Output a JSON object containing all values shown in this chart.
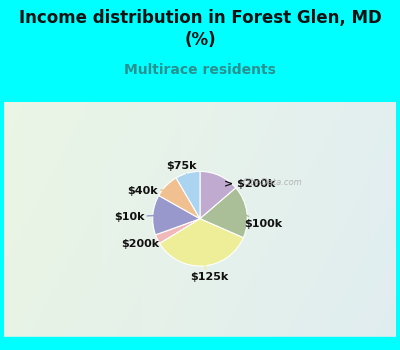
{
  "title": "Income distribution in Forest Glen, MD\n(%)",
  "subtitle": "Multirace residents",
  "title_color": "#111111",
  "subtitle_color": "#2a9090",
  "background_color": "#00ffff",
  "chart_bg_top_left": "#c8e8d8",
  "chart_bg_center": "#f0f8f4",
  "chart_bg_right": "#d8eef8",
  "labels": [
    "> $200k",
    "$100k",
    "$125k",
    "$200k",
    "$10k",
    "$40k",
    "$75k"
  ],
  "sizes": [
    13,
    17,
    33,
    3,
    13,
    8,
    8
  ],
  "colors": [
    "#c0aad0",
    "#aabf98",
    "#eeee99",
    "#f0b8b8",
    "#9898cc",
    "#f0c090",
    "#aad4f0"
  ],
  "start_angle": 90,
  "wedge_edge_color": "#ffffff"
}
